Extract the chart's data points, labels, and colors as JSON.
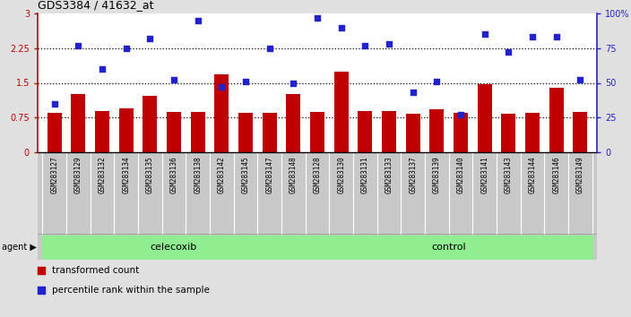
{
  "title": "GDS3384 / 41632_at",
  "samples": [
    "GSM283127",
    "GSM283129",
    "GSM283132",
    "GSM283134",
    "GSM283135",
    "GSM283136",
    "GSM283138",
    "GSM283142",
    "GSM283145",
    "GSM283147",
    "GSM283148",
    "GSM283128",
    "GSM283130",
    "GSM283131",
    "GSM283133",
    "GSM283137",
    "GSM283139",
    "GSM283140",
    "GSM283141",
    "GSM283143",
    "GSM283144",
    "GSM283146",
    "GSM283149"
  ],
  "bar_values": [
    0.85,
    1.25,
    0.9,
    0.95,
    1.22,
    0.88,
    0.88,
    1.68,
    0.85,
    0.85,
    1.25,
    0.88,
    1.75,
    0.9,
    0.9,
    0.83,
    0.92,
    0.85,
    1.48,
    0.83,
    0.85,
    1.4,
    0.88
  ],
  "dot_values": [
    35,
    77,
    60,
    75,
    82,
    52,
    95,
    47,
    51,
    75,
    50,
    97,
    90,
    77,
    78,
    43,
    51,
    27,
    85,
    72,
    83,
    83,
    52
  ],
  "celecoxib_count": 11,
  "control_count": 12,
  "bar_color": "#C00000",
  "dot_color": "#2222CC",
  "yticks_left": [
    0,
    0.75,
    1.5,
    2.25,
    3
  ],
  "ytick_labels_left": [
    "0",
    "0.75",
    "1.5",
    "2.25",
    "3"
  ],
  "yticks_right_vals": [
    0,
    25,
    50,
    75,
    100
  ],
  "hlines": [
    0.75,
    1.5,
    2.25
  ],
  "agent_label": "agent",
  "celecoxib_label": "celecoxib",
  "control_label": "control",
  "legend_bar": "transformed count",
  "legend_dot": "percentile rank within the sample",
  "bg_color": "#E0E0E0",
  "plot_bg": "#FFFFFF",
  "xlabel_bg": "#C8C8C8",
  "green_color": "#90EE90",
  "fig_width": 7.04,
  "fig_height": 3.54,
  "dpi": 100
}
